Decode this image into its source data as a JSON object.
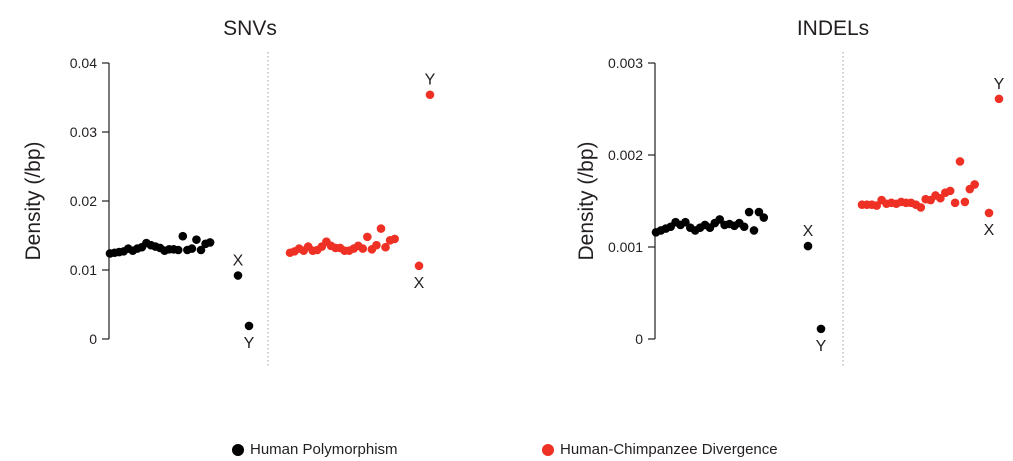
{
  "colors": {
    "polymorphism": "#000000",
    "divergence": "#ee3124",
    "axis": "#231f20",
    "divider": "#9d9fa2"
  },
  "legend": [
    {
      "label": "Human Polymorphism",
      "color": "#000000"
    },
    {
      "label": "Human-Chimpanzee Divergence",
      "color": "#ee3124"
    }
  ],
  "chart_data": [
    {
      "type": "scatter",
      "title": "SNVs",
      "xlabel": "",
      "ylabel": "Density (/bp)",
      "ylim": [
        0,
        0.04
      ],
      "yticks": [
        0,
        0.01,
        0.02,
        0.03,
        0.04
      ],
      "ytick_labels": [
        "0",
        "0.01",
        "0.02",
        "0.03",
        "0.04"
      ],
      "grid": false,
      "series": [
        {
          "name": "Human Polymorphism",
          "color": "#000000",
          "autosomes": [
            0.0124,
            0.0125,
            0.0126,
            0.0127,
            0.0131,
            0.0128,
            0.0131,
            0.0133,
            0.0139,
            0.0136,
            0.0134,
            0.0132,
            0.0128,
            0.013,
            0.013,
            0.0129,
            0.0149,
            0.0129,
            0.0131,
            0.0144,
            0.0129,
            0.0138,
            0.014
          ],
          "x_value": 0.0092,
          "y_value": 0.0019
        },
        {
          "name": "Human-Chimpanzee Divergence",
          "color": "#ee3124",
          "autosomes": [
            0.0125,
            0.0127,
            0.0131,
            0.0128,
            0.0134,
            0.0128,
            0.0129,
            0.0134,
            0.0141,
            0.0135,
            0.0132,
            0.0132,
            0.0128,
            0.0128,
            0.0131,
            0.0135,
            0.0131,
            0.0148,
            0.013,
            0.0136,
            0.016,
            0.0133,
            0.0143,
            0.0145
          ],
          "x_value": 0.0106,
          "y_value": 0.0354
        }
      ],
      "annotations": [
        {
          "series": 0,
          "chrom": "X",
          "text": "X",
          "side": "above"
        },
        {
          "series": 0,
          "chrom": "Y",
          "text": "Y",
          "side": "below"
        },
        {
          "series": 1,
          "chrom": "X",
          "text": "X",
          "side": "below"
        },
        {
          "series": 1,
          "chrom": "Y",
          "text": "Y",
          "side": "above"
        }
      ]
    },
    {
      "type": "scatter",
      "title": "INDELs",
      "xlabel": "",
      "ylabel": "Density (/bp)",
      "ylim": [
        0,
        0.003
      ],
      "yticks": [
        0,
        0.001,
        0.002,
        0.003
      ],
      "ytick_labels": [
        "0",
        "0.001",
        "0.002",
        "0.003"
      ],
      "grid": false,
      "series": [
        {
          "name": "Human Polymorphism",
          "color": "#000000",
          "autosomes": [
            0.00116,
            0.00118,
            0.0012,
            0.00122,
            0.00127,
            0.00124,
            0.00127,
            0.00121,
            0.00118,
            0.00121,
            0.00124,
            0.00121,
            0.00126,
            0.0013,
            0.00124,
            0.00125,
            0.00123,
            0.00126,
            0.00122,
            0.00138,
            0.00118,
            0.00138,
            0.00132
          ],
          "x_value": 0.00101,
          "y_value": 0.00011
        },
        {
          "name": "Human-Chimpanzee Divergence",
          "color": "#ee3124",
          "autosomes": [
            0.00146,
            0.00146,
            0.00146,
            0.00145,
            0.00151,
            0.00147,
            0.00148,
            0.00147,
            0.00149,
            0.00148,
            0.00148,
            0.00146,
            0.00143,
            0.00152,
            0.00151,
            0.00156,
            0.00153,
            0.00159,
            0.00161,
            0.00148,
            0.00193,
            0.00149,
            0.00163,
            0.00168
          ],
          "x_value": 0.00137,
          "y_value": 0.00261
        }
      ],
      "annotations": [
        {
          "series": 0,
          "chrom": "X",
          "text": "X",
          "side": "above"
        },
        {
          "series": 0,
          "chrom": "Y",
          "text": "Y",
          "side": "below"
        },
        {
          "series": 1,
          "chrom": "X",
          "text": "X",
          "side": "below"
        },
        {
          "series": 1,
          "chrom": "Y",
          "text": "Y",
          "side": "above"
        }
      ]
    }
  ]
}
